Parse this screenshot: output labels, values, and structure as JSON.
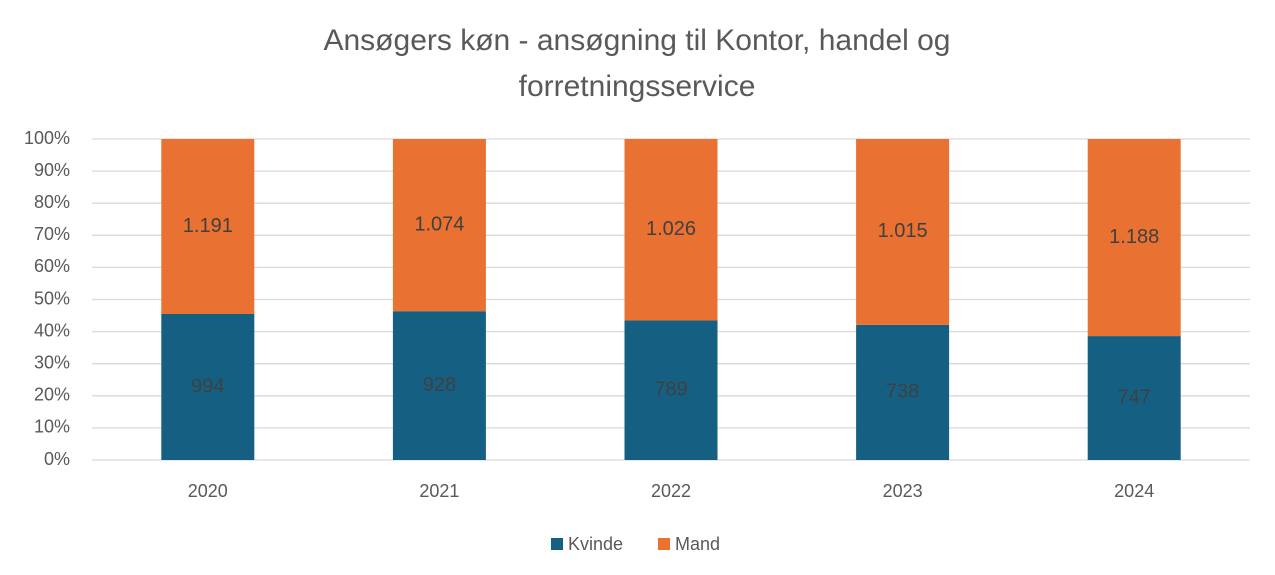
{
  "chart_data": {
    "type": "bar",
    "stacking": "percent",
    "title": "Ansøgers køn - ansøgning til Kontor, handel og forretningsservice",
    "categories": [
      "2020",
      "2021",
      "2022",
      "2023",
      "2024"
    ],
    "series": [
      {
        "name": "Kvinde",
        "color": "#156082",
        "values": [
          994,
          928,
          789,
          738,
          747
        ]
      },
      {
        "name": "Mand",
        "color": "#e97132",
        "values": [
          1191,
          1074,
          1026,
          1015,
          1188
        ],
        "value_labels": [
          "1.191",
          "1.074",
          "1.026",
          "1.015",
          "1.188"
        ]
      }
    ],
    "ylim": [
      0,
      100
    ],
    "yticks": [
      {
        "value": 0,
        "label": "0%"
      },
      {
        "value": 10,
        "label": "10%"
      },
      {
        "value": 20,
        "label": "20%"
      },
      {
        "value": 30,
        "label": "30%"
      },
      {
        "value": 40,
        "label": "40%"
      },
      {
        "value": 50,
        "label": "50%"
      },
      {
        "value": 60,
        "label": "60%"
      },
      {
        "value": 70,
        "label": "70%"
      },
      {
        "value": 80,
        "label": "80%"
      },
      {
        "value": 90,
        "label": "90%"
      },
      {
        "value": 100,
        "label": "100%"
      }
    ],
    "grid": true,
    "legend": "bottom"
  }
}
